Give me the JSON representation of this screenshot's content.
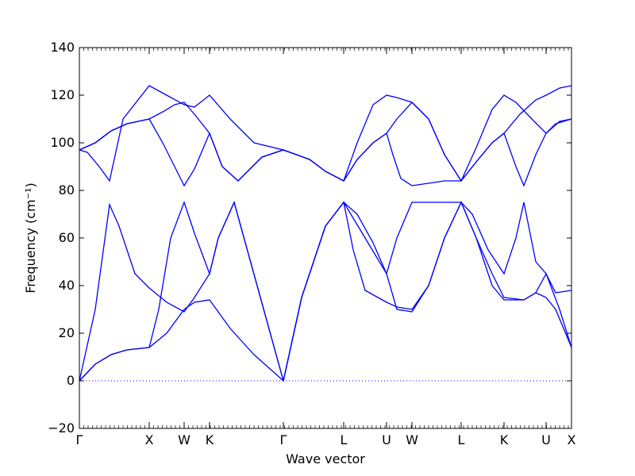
{
  "chart_data": {
    "type": "line",
    "title": "",
    "xlabel": "Wave vector",
    "ylabel": "Frequency (cm⁻¹)",
    "ylim": [
      -20,
      140
    ],
    "yticks": [
      -20,
      0,
      20,
      40,
      60,
      80,
      100,
      120,
      140
    ],
    "xlim": [
      0,
      620
    ],
    "grid": false,
    "line_color": "#0000ff",
    "zero_line": {
      "y": 0,
      "style": "dotted",
      "color": "#0000ff"
    },
    "special_points": [
      {
        "label": "Γ",
        "x": 0
      },
      {
        "label": "X",
        "x": 88
      },
      {
        "label": "W",
        "x": 132
      },
      {
        "label": "K",
        "x": 164
      },
      {
        "label": "Γ",
        "x": 257
      },
      {
        "label": "L",
        "x": 333
      },
      {
        "label": "U",
        "x": 387
      },
      {
        "label": "W",
        "x": 419
      },
      {
        "label": "L",
        "x": 481
      },
      {
        "label": "K",
        "x": 535
      },
      {
        "label": "U",
        "x": 588
      },
      {
        "label": "X",
        "x": 620
      }
    ],
    "series": [
      {
        "values": [
          [
            0,
            0
          ],
          [
            20,
            7
          ],
          [
            40,
            11
          ],
          [
            60,
            13
          ],
          [
            88,
            14
          ],
          [
            100,
            30
          ],
          [
            115,
            60
          ],
          [
            132,
            75
          ],
          [
            145,
            62
          ],
          [
            164,
            45
          ],
          [
            175,
            60
          ],
          [
            195,
            75
          ],
          [
            257,
            0
          ],
          [
            280,
            35
          ],
          [
            310,
            65
          ],
          [
            333,
            75
          ],
          [
            360,
            60
          ],
          [
            387,
            45
          ],
          [
            400,
            60
          ],
          [
            419,
            75
          ],
          [
            481,
            75
          ],
          [
            495,
            70
          ],
          [
            515,
            55
          ],
          [
            535,
            45
          ],
          [
            550,
            60
          ],
          [
            560,
            75
          ],
          [
            575,
            50
          ],
          [
            588,
            45
          ],
          [
            605,
            30
          ],
          [
            620,
            14
          ]
        ]
      },
      {
        "values": [
          [
            0,
            0
          ],
          [
            20,
            30
          ],
          [
            38,
            74
          ],
          [
            50,
            65
          ],
          [
            70,
            45
          ],
          [
            88,
            39
          ],
          [
            110,
            33
          ],
          [
            132,
            29
          ],
          [
            145,
            35
          ],
          [
            164,
            45
          ],
          [
            175,
            60
          ],
          [
            195,
            75
          ],
          [
            257,
            0
          ],
          [
            280,
            35
          ],
          [
            310,
            65
          ],
          [
            333,
            75
          ],
          [
            345,
            55
          ],
          [
            360,
            38
          ],
          [
            387,
            33
          ],
          [
            400,
            31
          ],
          [
            419,
            30
          ],
          [
            440,
            40
          ],
          [
            460,
            60
          ],
          [
            481,
            75
          ],
          [
            500,
            60
          ],
          [
            520,
            40
          ],
          [
            535,
            34
          ],
          [
            560,
            34
          ],
          [
            575,
            37
          ],
          [
            588,
            45
          ],
          [
            600,
            37
          ],
          [
            620,
            38
          ]
        ]
      },
      {
        "values": [
          [
            0,
            0
          ],
          [
            20,
            7
          ],
          [
            40,
            11
          ],
          [
            60,
            13
          ],
          [
            88,
            14
          ],
          [
            110,
            20
          ],
          [
            132,
            30
          ],
          [
            145,
            33
          ],
          [
            164,
            34
          ],
          [
            190,
            22
          ],
          [
            220,
            11
          ],
          [
            257,
            0
          ],
          [
            280,
            35
          ],
          [
            310,
            65
          ],
          [
            333,
            75
          ],
          [
            350,
            70
          ],
          [
            370,
            58
          ],
          [
            387,
            45
          ],
          [
            400,
            30
          ],
          [
            419,
            29
          ],
          [
            440,
            40
          ],
          [
            460,
            60
          ],
          [
            481,
            75
          ],
          [
            500,
            60
          ],
          [
            520,
            45
          ],
          [
            535,
            35
          ],
          [
            560,
            34
          ],
          [
            575,
            37
          ],
          [
            588,
            35
          ],
          [
            600,
            30
          ],
          [
            620,
            14
          ]
        ]
      },
      {
        "values": [
          [
            0,
            97
          ],
          [
            10,
            96
          ],
          [
            25,
            90
          ],
          [
            38,
            84
          ],
          [
            55,
            110
          ],
          [
            88,
            124
          ],
          [
            110,
            120
          ],
          [
            132,
            116
          ],
          [
            145,
            115
          ],
          [
            164,
            120
          ],
          [
            190,
            110
          ],
          [
            220,
            100
          ],
          [
            257,
            97
          ],
          [
            290,
            93
          ],
          [
            310,
            88
          ],
          [
            333,
            84
          ],
          [
            350,
            100
          ],
          [
            370,
            116
          ],
          [
            387,
            120
          ],
          [
            400,
            119
          ],
          [
            419,
            117
          ],
          [
            440,
            110
          ],
          [
            460,
            95
          ],
          [
            481,
            84
          ],
          [
            500,
            98
          ],
          [
            520,
            114
          ],
          [
            535,
            120
          ],
          [
            550,
            117
          ],
          [
            570,
            110
          ],
          [
            588,
            104
          ],
          [
            600,
            108
          ],
          [
            620,
            110
          ]
        ]
      },
      {
        "values": [
          [
            0,
            97
          ],
          [
            20,
            100
          ],
          [
            40,
            105
          ],
          [
            60,
            108
          ],
          [
            88,
            110
          ],
          [
            105,
            100
          ],
          [
            120,
            90
          ],
          [
            132,
            82
          ],
          [
            145,
            89
          ],
          [
            164,
            104
          ],
          [
            180,
            90
          ],
          [
            200,
            84
          ],
          [
            230,
            94
          ],
          [
            257,
            97
          ],
          [
            290,
            93
          ],
          [
            310,
            88
          ],
          [
            333,
            84
          ],
          [
            350,
            93
          ],
          [
            370,
            100
          ],
          [
            387,
            104
          ],
          [
            400,
            110
          ],
          [
            419,
            117
          ],
          [
            440,
            110
          ],
          [
            460,
            95
          ],
          [
            481,
            84
          ],
          [
            500,
            92
          ],
          [
            520,
            100
          ],
          [
            535,
            104
          ],
          [
            550,
            90
          ],
          [
            560,
            82
          ],
          [
            575,
            95
          ],
          [
            588,
            104
          ],
          [
            605,
            109
          ],
          [
            620,
            110
          ]
        ]
      },
      {
        "values": [
          [
            0,
            97
          ],
          [
            20,
            100
          ],
          [
            40,
            105
          ],
          [
            60,
            108
          ],
          [
            88,
            110
          ],
          [
            105,
            113
          ],
          [
            120,
            116
          ],
          [
            132,
            117
          ],
          [
            145,
            112
          ],
          [
            164,
            104
          ],
          [
            180,
            90
          ],
          [
            200,
            84
          ],
          [
            230,
            94
          ],
          [
            257,
            97
          ],
          [
            290,
            93
          ],
          [
            310,
            88
          ],
          [
            333,
            84
          ],
          [
            350,
            93
          ],
          [
            370,
            100
          ],
          [
            387,
            104
          ],
          [
            395,
            95
          ],
          [
            405,
            85
          ],
          [
            419,
            82
          ],
          [
            440,
            83
          ],
          [
            460,
            84
          ],
          [
            481,
            84
          ],
          [
            500,
            92
          ],
          [
            520,
            100
          ],
          [
            535,
            104
          ],
          [
            555,
            112
          ],
          [
            575,
            118
          ],
          [
            588,
            120
          ],
          [
            605,
            123
          ],
          [
            620,
            124
          ]
        ]
      }
    ]
  }
}
